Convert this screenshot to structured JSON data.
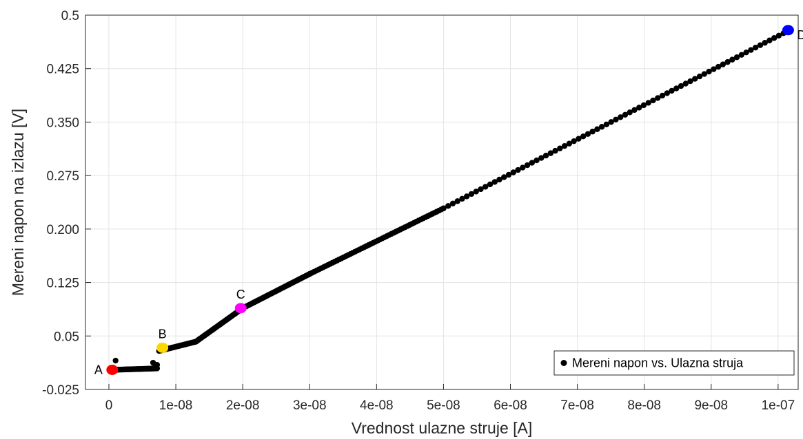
{
  "chart_data": {
    "type": "scatter",
    "title": "",
    "xlabel": "Vrednost ulazne struje [A]",
    "ylabel": "Mereni napon na izlazu [V]",
    "xlim": [
      -3.5e-09,
      1.03e-07
    ],
    "ylim": [
      -0.025,
      0.5
    ],
    "xticks": [
      0,
      1e-08,
      2e-08,
      3e-08,
      4e-08,
      5e-08,
      6e-08,
      7e-08,
      8e-08,
      9e-08,
      1e-07
    ],
    "xtick_labels": [
      "0",
      "1e-08",
      "2e-08",
      "3e-08",
      "4e-08",
      "5e-08",
      "6e-08",
      "7e-08",
      "8e-08",
      "9e-08",
      "1e-07"
    ],
    "yticks": [
      -0.025,
      0.05,
      0.125,
      0.2,
      0.275,
      0.35,
      0.425,
      0.5
    ],
    "ytick_labels": [
      "-0.025",
      "0.05",
      "0.125",
      "0.200",
      "0.275",
      "0.350",
      "0.425",
      "0.5"
    ],
    "grid": true,
    "legend": {
      "position": "bottom-right",
      "entries": [
        "Mereni napon vs. Ulazna struja"
      ]
    },
    "series": [
      {
        "name": "Mereni napon vs. Ulazna struja",
        "color": "#000000",
        "segments": [
          {
            "x_start": 5e-10,
            "x_end": 7.2e-09,
            "y_start": 0.0025,
            "y_end": 0.0045,
            "count": 48
          },
          {
            "x_start": 7.5e-09,
            "x_end": 1.3e-08,
            "y_start": 0.029,
            "y_end": 0.042,
            "count": 40
          },
          {
            "x_start": 1.3e-08,
            "x_end": 2e-08,
            "y_start": 0.042,
            "y_end": 0.089,
            "count": 45
          },
          {
            "x_start": 2e-08,
            "x_end": 3e-08,
            "y_start": 0.089,
            "y_end": 0.137,
            "count": 50
          },
          {
            "x_start": 3e-08,
            "x_end": 5e-08,
            "y_start": 0.137,
            "y_end": 0.229,
            "count": 60
          },
          {
            "x_start": 5e-08,
            "x_end": 1.015e-07,
            "y_start": 0.229,
            "y_end": 0.478,
            "count": 75
          }
        ],
        "outliers": [
          {
            "x": 1e-09,
            "y": 0.0155
          },
          {
            "x": 6.6e-09,
            "y": 0.0125
          },
          {
            "x": 7.2e-09,
            "y": 0.0095
          },
          {
            "x": 6.9e-09,
            "y": 0.007
          }
        ]
      }
    ],
    "annotations": [
      {
        "label": "A",
        "x": 5e-10,
        "y": 0.0025,
        "color": "#ff0000",
        "side": "left"
      },
      {
        "label": "B",
        "x": 8e-09,
        "y": 0.0335,
        "color": "#ffd700",
        "side": "above"
      },
      {
        "label": "C",
        "x": 1.97e-08,
        "y": 0.089,
        "color": "#ff00ff",
        "side": "above"
      },
      {
        "label": "D",
        "x": 1.015e-07,
        "y": 0.479,
        "color": "#0000ff",
        "side": "right"
      }
    ]
  }
}
